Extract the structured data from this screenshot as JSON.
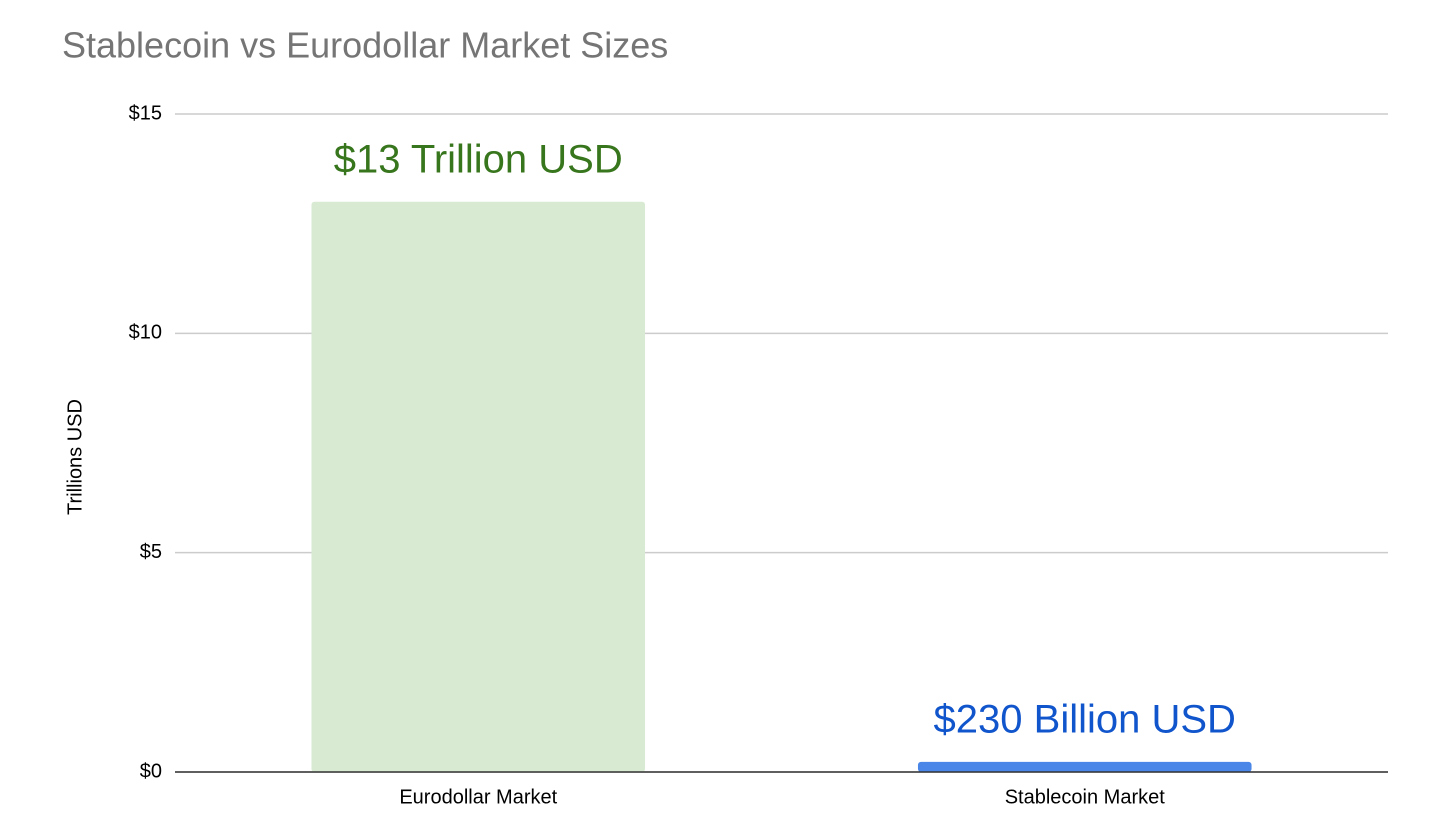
{
  "chart_data": {
    "type": "bar",
    "title": "Stablecoin vs Eurodollar Market Sizes",
    "y_label": "Trillions USD",
    "categories": [
      "Eurodollar Market",
      "Stablecoin Market"
    ],
    "values": [
      13,
      0.23
    ],
    "value_labels": [
      "$13 Trillion USD",
      "$230 Billion USD"
    ],
    "colors": [
      "#d9ead3",
      "#4a86e8"
    ],
    "value_label_colors": [
      "#38761d",
      "#1155cc"
    ],
    "ylim": [
      0,
      15
    ],
    "yticks": [
      {
        "value": 0,
        "label": "$0"
      },
      {
        "value": 5,
        "label": "$5"
      },
      {
        "value": 10,
        "label": "$10"
      },
      {
        "value": 15,
        "label": "$15"
      }
    ],
    "grid": true
  }
}
